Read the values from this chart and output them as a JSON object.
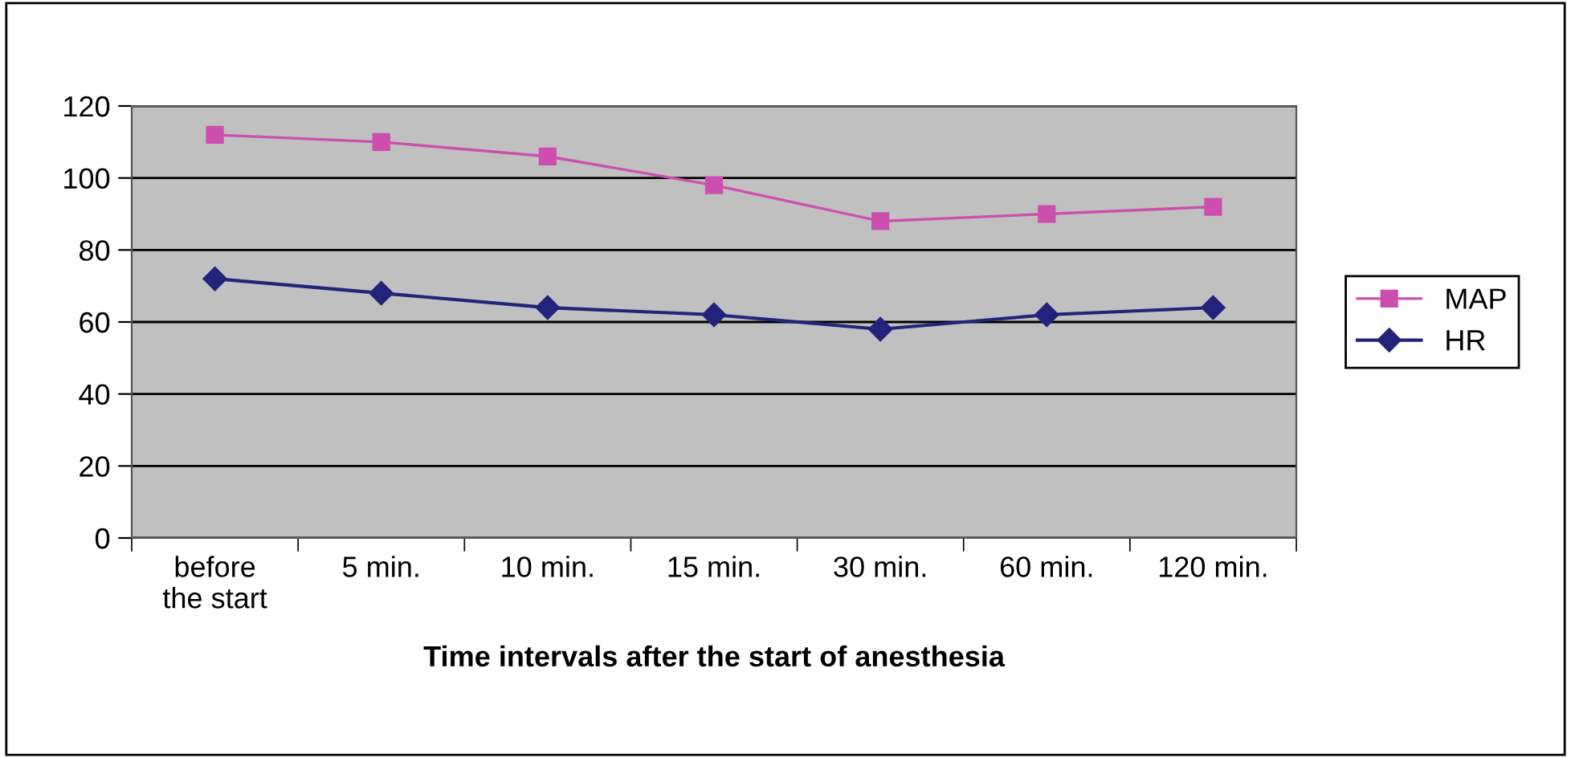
{
  "chart_data": {
    "type": "line",
    "xlabel": "Time intervals after the start of anesthesia",
    "categories": [
      "before\nthe start",
      "5 min.",
      "10 min.",
      "15 min.",
      "30 min.",
      "60 min.",
      "120 min."
    ],
    "series": [
      {
        "name": "MAP",
        "color": "#cc4fb0",
        "marker": "square",
        "values": [
          112,
          110,
          106,
          98,
          88,
          90,
          92
        ]
      },
      {
        "name": "HR",
        "color": "#22237a",
        "marker": "diamond",
        "values": [
          72,
          68,
          64,
          62,
          58,
          62,
          64
        ]
      }
    ],
    "ylim": [
      0,
      120
    ],
    "yticks": [
      0,
      20,
      40,
      60,
      80,
      100,
      120
    ],
    "grid": "y",
    "legend": "right"
  }
}
